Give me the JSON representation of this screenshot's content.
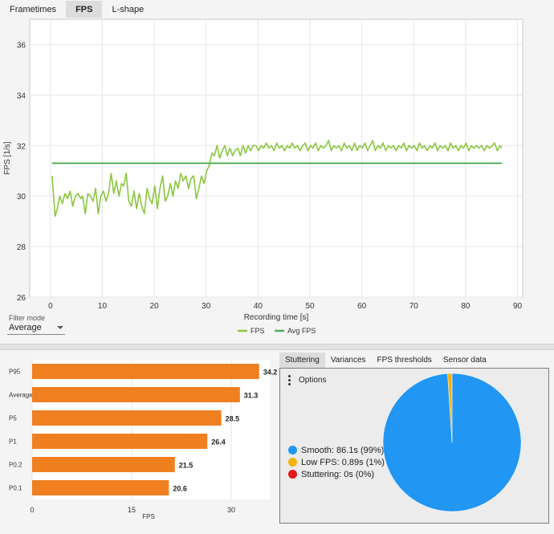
{
  "tabs": [
    {
      "label": "Frametimes",
      "active": false
    },
    {
      "label": "FPS",
      "active": true
    },
    {
      "label": "L-shape",
      "active": false
    }
  ],
  "fps_chart": {
    "type": "line",
    "ylabel": "FPS [1/s]",
    "xlabel": "Recording time [s]",
    "xlim": [
      -4,
      91
    ],
    "ylim": [
      26,
      37
    ],
    "x_ticks": [
      0,
      10,
      20,
      30,
      40,
      50,
      60,
      70,
      80,
      90
    ],
    "y_ticks": [
      26,
      28,
      30,
      32,
      34,
      36
    ],
    "grid": true,
    "legend_placement": "bottom-center",
    "avg_fps": 31.3,
    "series": [
      {
        "name": "FPS",
        "color": "#8cc63f",
        "points": [
          [
            0.3,
            30.8
          ],
          [
            0.9,
            29.2
          ],
          [
            1.3,
            29.5
          ],
          [
            1.8,
            30.0
          ],
          [
            2.3,
            29.7
          ],
          [
            2.8,
            30.1
          ],
          [
            3.3,
            29.9
          ],
          [
            3.8,
            30.2
          ],
          [
            4.3,
            29.6
          ],
          [
            4.8,
            30.0
          ],
          [
            5.3,
            30.1
          ],
          [
            5.8,
            29.9
          ],
          [
            6.2,
            30.0
          ],
          [
            6.7,
            29.3
          ],
          [
            7.2,
            30.1
          ],
          [
            7.7,
            30.0
          ],
          [
            8.2,
            29.8
          ],
          [
            8.7,
            30.3
          ],
          [
            9.2,
            29.3
          ],
          [
            9.7,
            30.0
          ],
          [
            10.2,
            30.2
          ],
          [
            10.7,
            29.8
          ],
          [
            11.2,
            30.1
          ],
          [
            11.7,
            30.9
          ],
          [
            12.2,
            30.1
          ],
          [
            12.7,
            30.6
          ],
          [
            13.2,
            30.0
          ],
          [
            13.7,
            30.5
          ],
          [
            14.1,
            30.4
          ],
          [
            14.6,
            30.9
          ],
          [
            15.1,
            29.8
          ],
          [
            15.6,
            29.6
          ],
          [
            16.1,
            30.2
          ],
          [
            16.6,
            29.5
          ],
          [
            17.1,
            30.1
          ],
          [
            17.6,
            29.6
          ],
          [
            18.1,
            29.3
          ],
          [
            18.6,
            30.3
          ],
          [
            19.1,
            29.9
          ],
          [
            19.6,
            29.7
          ],
          [
            20.1,
            30.4
          ],
          [
            20.6,
            29.5
          ],
          [
            21.1,
            30.3
          ],
          [
            21.6,
            30.8
          ],
          [
            22.1,
            29.8
          ],
          [
            22.6,
            30.0
          ],
          [
            23.1,
            30.5
          ],
          [
            23.6,
            30.0
          ],
          [
            24.1,
            30.6
          ],
          [
            24.6,
            30.3
          ],
          [
            25.1,
            30.9
          ],
          [
            25.6,
            30.6
          ],
          [
            26.1,
            30.8
          ],
          [
            26.6,
            30.3
          ],
          [
            27.1,
            30.7
          ],
          [
            27.6,
            30.8
          ],
          [
            28.1,
            29.9
          ],
          [
            28.6,
            30.3
          ],
          [
            29.1,
            30.8
          ],
          [
            29.6,
            30.5
          ],
          [
            30.1,
            31.0
          ],
          [
            30.6,
            31.2
          ],
          [
            31.1,
            31.7
          ],
          [
            31.6,
            31.6
          ],
          [
            32.1,
            32.0
          ],
          [
            32.6,
            31.5
          ],
          [
            33.1,
            31.8
          ],
          [
            33.6,
            32.0
          ],
          [
            34.1,
            31.6
          ],
          [
            34.6,
            31.9
          ],
          [
            35.1,
            31.6
          ],
          [
            35.6,
            31.8
          ],
          [
            36.1,
            31.9
          ],
          [
            36.6,
            31.6
          ],
          [
            37.1,
            32.0
          ],
          [
            37.6,
            31.7
          ],
          [
            38.1,
            32.0
          ],
          [
            38.6,
            31.8
          ],
          [
            39.1,
            32.0
          ],
          [
            39.6,
            32.0
          ],
          [
            40.1,
            31.8
          ],
          [
            40.6,
            32.0
          ],
          [
            41.1,
            31.9
          ],
          [
            41.6,
            32.1
          ],
          [
            42.1,
            31.9
          ],
          [
            42.6,
            32.0
          ],
          [
            43.1,
            31.8
          ],
          [
            43.6,
            32.1
          ],
          [
            44.1,
            31.9
          ],
          [
            44.6,
            32.0
          ],
          [
            45.1,
            31.8
          ],
          [
            45.6,
            32.0
          ],
          [
            46.1,
            31.9
          ],
          [
            46.6,
            32.1
          ],
          [
            47.1,
            31.9
          ],
          [
            47.6,
            32.0
          ],
          [
            48.1,
            31.8
          ],
          [
            48.6,
            32.0
          ],
          [
            49.1,
            32.1
          ],
          [
            49.6,
            31.8
          ],
          [
            50.1,
            32.0
          ],
          [
            50.6,
            31.9
          ],
          [
            51.1,
            32.1
          ],
          [
            51.6,
            31.8
          ],
          [
            52.1,
            32.0
          ],
          [
            52.6,
            31.9
          ],
          [
            53.1,
            32.0
          ],
          [
            53.6,
            32.2
          ],
          [
            54.1,
            31.8
          ],
          [
            54.6,
            32.0
          ],
          [
            55.1,
            31.9
          ],
          [
            55.6,
            32.0
          ],
          [
            56.1,
            31.8
          ],
          [
            56.6,
            32.1
          ],
          [
            57.1,
            31.9
          ],
          [
            57.6,
            32.0
          ],
          [
            58.1,
            31.8
          ],
          [
            58.6,
            32.1
          ],
          [
            59.1,
            31.8
          ],
          [
            59.6,
            32.0
          ],
          [
            60.1,
            31.9
          ],
          [
            60.6,
            32.1
          ],
          [
            61.1,
            31.8
          ],
          [
            61.6,
            32.0
          ],
          [
            62.1,
            32.2
          ],
          [
            62.6,
            31.8
          ],
          [
            63.1,
            32.0
          ],
          [
            63.6,
            31.9
          ],
          [
            64.1,
            32.1
          ],
          [
            64.6,
            31.8
          ],
          [
            65.1,
            32.0
          ],
          [
            65.6,
            31.9
          ],
          [
            66.1,
            32.0
          ],
          [
            66.6,
            31.8
          ],
          [
            67.1,
            32.0
          ],
          [
            67.6,
            31.9
          ],
          [
            68.1,
            32.1
          ],
          [
            68.6,
            31.8
          ],
          [
            69.1,
            32.0
          ],
          [
            69.6,
            31.9
          ],
          [
            70.1,
            32.0
          ],
          [
            70.6,
            31.8
          ],
          [
            71.1,
            32.1
          ],
          [
            71.6,
            31.9
          ],
          [
            72.1,
            32.0
          ],
          [
            72.6,
            31.8
          ],
          [
            73.1,
            32.0
          ],
          [
            73.6,
            31.9
          ],
          [
            74.1,
            32.1
          ],
          [
            74.6,
            31.8
          ],
          [
            75.1,
            32.0
          ],
          [
            75.6,
            31.9
          ],
          [
            76.1,
            32.0
          ],
          [
            76.6,
            31.8
          ],
          [
            77.1,
            32.1
          ],
          [
            77.6,
            31.9
          ],
          [
            78.1,
            32.0
          ],
          [
            78.6,
            31.8
          ],
          [
            79.1,
            32.0
          ],
          [
            79.6,
            31.9
          ],
          [
            80.1,
            32.1
          ],
          [
            80.6,
            31.8
          ],
          [
            81.1,
            32.0
          ],
          [
            81.6,
            31.9
          ],
          [
            82.1,
            32.0
          ],
          [
            82.6,
            31.9
          ],
          [
            83.1,
            32.0
          ],
          [
            83.6,
            31.8
          ],
          [
            84.1,
            32.0
          ],
          [
            84.6,
            31.9
          ],
          [
            85.1,
            32.0
          ],
          [
            85.6,
            32.1
          ],
          [
            86.1,
            31.8
          ],
          [
            86.6,
            32.0
          ],
          [
            87.0,
            31.9
          ]
        ]
      },
      {
        "name": "Avg FPS",
        "color": "#4caf50",
        "points": [
          [
            0.3,
            31.3
          ],
          [
            87.0,
            31.3
          ]
        ]
      }
    ]
  },
  "filter": {
    "label": "Filter mode",
    "value": "Average"
  },
  "bar_chart": {
    "type": "bar",
    "orientation": "horizontal",
    "categories": [
      "P95",
      "Average",
      "P5",
      "P1",
      "P0.2",
      "P0.1"
    ],
    "values": [
      34.2,
      31.3,
      28.5,
      26.4,
      21.5,
      20.6
    ],
    "value_labels": [
      "34.2",
      "31.3",
      "28.5",
      "26.4",
      "21.5",
      "20.6"
    ],
    "xlabel": "FPS",
    "x_ticks": [
      0,
      15,
      30
    ],
    "xlim": [
      0,
      35.8
    ],
    "grid": true,
    "color": "#f07f20"
  },
  "sub_tabs": [
    {
      "label": "Stuttering",
      "active": true
    },
    {
      "label": "Variances",
      "active": false
    },
    {
      "label": "FPS thresholds",
      "active": false
    },
    {
      "label": "Sensor data",
      "active": false
    }
  ],
  "options_label": "Options",
  "pie_chart": {
    "type": "pie",
    "slices": [
      {
        "label": "Smooth:  86.1s (99%)",
        "value": 86.1,
        "color": "#2196f3"
      },
      {
        "label": "Low FPS:  0.89s (1%)",
        "value": 0.89,
        "color": "#f5b20d"
      },
      {
        "label": "Stuttering:  0s (0%)",
        "value": 0,
        "color": "#e01b1b"
      }
    ]
  }
}
